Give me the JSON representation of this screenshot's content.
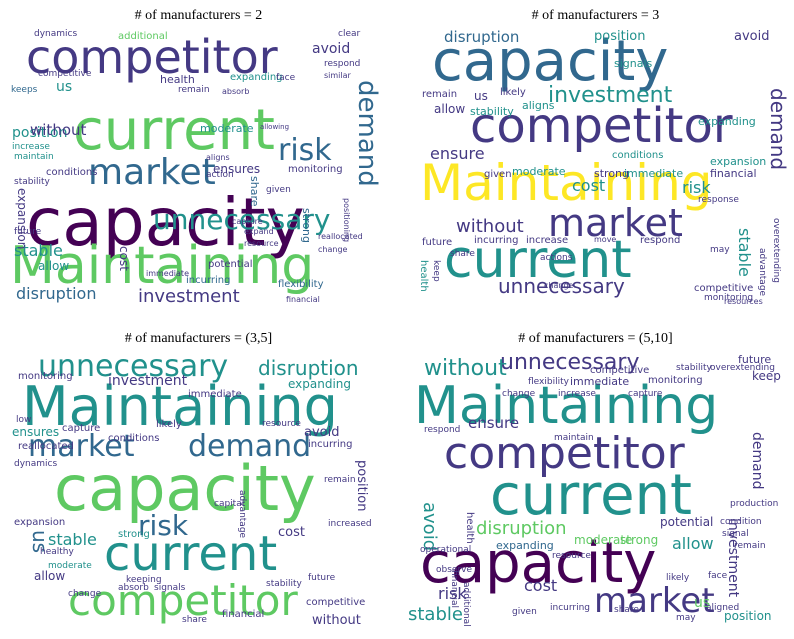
{
  "panels": [
    {
      "title": "# of manufacturers = 2",
      "words": [
        "capacity",
        "current",
        "competitor",
        "Maintaining",
        "market",
        "unnecessary",
        "risk",
        "demand",
        "investment",
        "disruption",
        "stable",
        "position",
        "avoid",
        "without",
        "us",
        "ensures",
        "cost",
        "expansion",
        "allow",
        "incurring",
        "moderate",
        "health",
        "conditions",
        "share",
        "flexibility",
        "strong",
        "potential",
        "monitoring",
        "expanding",
        "additional",
        "dynamics",
        "keeps",
        "competitive",
        "increase",
        "future",
        "maintain",
        "stability",
        "immediate",
        "remain",
        "face",
        "action",
        "reallocated",
        "given",
        "change",
        "capture",
        "financial",
        "resource",
        "expand",
        "respond",
        "similar",
        "clear",
        "aligns",
        "positioning",
        "absorb",
        "allowing"
      ]
    },
    {
      "title": "# of manufacturers = 3",
      "words": [
        "capacity",
        "competitor",
        "Maintaining",
        "market",
        "current",
        "investment",
        "disruption",
        "unnecessary",
        "without",
        "ensure",
        "demand",
        "risk",
        "cost",
        "stable",
        "position",
        "avoid",
        "us",
        "allow",
        "signals",
        "stability",
        "aligns",
        "likely",
        "remain",
        "expanding",
        "expansion",
        "moderate",
        "strong",
        "immediate",
        "financial",
        "given",
        "conditions",
        "incurring",
        "increase",
        "future",
        "respond",
        "competitive",
        "monitoring",
        "advantage",
        "overextending",
        "actions",
        "response",
        "health",
        "keep",
        "share",
        "may",
        "change",
        "move",
        "resources"
      ]
    },
    {
      "title": "# of manufacturers = (3,5]",
      "words": [
        "capacity",
        "Maintaining",
        "current",
        "competitor",
        "unnecessary",
        "market",
        "demand",
        "risk",
        "disruption",
        "investment",
        "us",
        "stable",
        "allow",
        "ensures",
        "expanding",
        "avoid",
        "position",
        "cost",
        "incurring",
        "expansion",
        "strong",
        "monitoring",
        "immediate",
        "capture",
        "likely",
        "conditions",
        "reallocated",
        "without",
        "competitive",
        "financial",
        "moderate",
        "healthy",
        "dynamics",
        "share",
        "absorb",
        "signals",
        "stability",
        "future",
        "remain",
        "increased",
        "resource",
        "advantage",
        "keeping",
        "change",
        "capital",
        "low"
      ]
    },
    {
      "title": "# of manufacturers = (5,10]",
      "words": [
        "capacity",
        "Maintaining",
        "current",
        "competitor",
        "market",
        "unnecessary",
        "without",
        "disruption",
        "stable",
        "avoid",
        "investment",
        "demand",
        "ensure",
        "risk",
        "cost",
        "us",
        "allow",
        "expanding",
        "moderate",
        "strong",
        "position",
        "potential",
        "monitoring",
        "immediate",
        "competitive",
        "stability",
        "future",
        "overextending",
        "keep",
        "increase",
        "change",
        "flexibility",
        "capture",
        "respond",
        "maintain",
        "financial",
        "health",
        "additional",
        "given",
        "share",
        "incurring",
        "operational",
        "resource",
        "observe",
        "likely",
        "face",
        "aligned",
        "signal",
        "condition",
        "production",
        "remain",
        "may"
      ]
    }
  ]
}
